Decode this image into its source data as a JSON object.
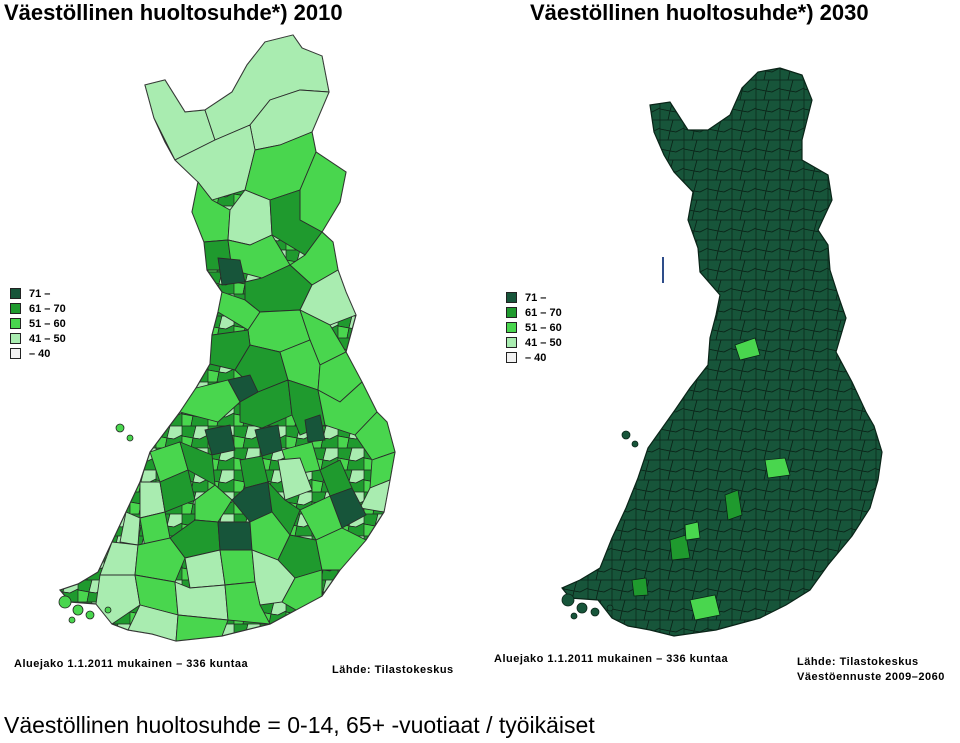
{
  "left_map": {
    "title": "Väestöllinen huoltosuhde*) 2010",
    "legend": [
      {
        "label": "71 –",
        "color": "#17553a"
      },
      {
        "label": "61 – 70",
        "color": "#1f9a2e"
      },
      {
        "label": "51 – 60",
        "color": "#49d64e"
      },
      {
        "label": "41 – 50",
        "color": "#a9ecb0"
      },
      {
        "label": "– 40",
        "color": "#f2f2f2"
      }
    ],
    "footer_division": "Aluejako 1.1.2011 mukainen – 336 kuntaa",
    "footer_source": "Lähde: Tilastokeskus"
  },
  "right_map": {
    "title": "Väestöllinen huoltosuhde*)  2030",
    "legend": [
      {
        "label": "71 –",
        "color": "#17553a"
      },
      {
        "label": "61 – 70",
        "color": "#1f9a2e"
      },
      {
        "label": "51 – 60",
        "color": "#49d64e"
      },
      {
        "label": "41 – 50",
        "color": "#a9ecb0"
      },
      {
        "label": "– 40",
        "color": "#f2f2f2"
      }
    ],
    "footer_division": "Aluejako 1.1.2011 mukainen – 336 kuntaa",
    "footer_source": "Lähde: Tilastokeskus",
    "footer_forecast": "Väestöennuste 2009–2060"
  },
  "definition": "Väestöllinen huoltosuhde = 0-14, 65+ -vuotiaat / työikäiset"
}
